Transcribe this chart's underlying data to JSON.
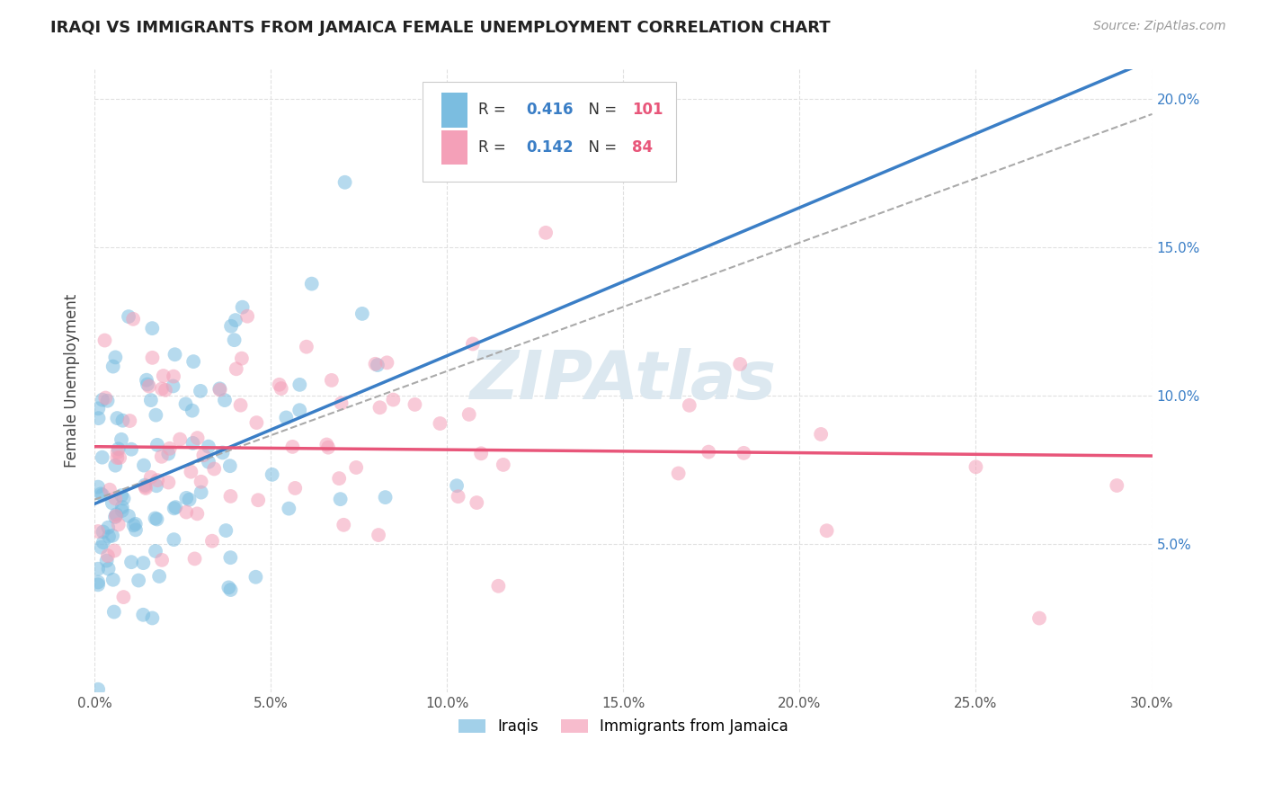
{
  "title": "IRAQI VS IMMIGRANTS FROM JAMAICA FEMALE UNEMPLOYMENT CORRELATION CHART",
  "source": "Source: ZipAtlas.com",
  "ylabel": "Female Unemployment",
  "xlim": [
    0.0,
    0.3
  ],
  "ylim": [
    0.0,
    0.21
  ],
  "xticks": [
    0.0,
    0.05,
    0.1,
    0.15,
    0.2,
    0.25,
    0.3
  ],
  "xtick_labels": [
    "0.0%",
    "5.0%",
    "10.0%",
    "15.0%",
    "20.0%",
    "25.0%",
    "30.0%"
  ],
  "yticks": [
    0.05,
    0.1,
    0.15,
    0.2
  ],
  "ytick_labels": [
    "5.0%",
    "10.0%",
    "15.0%",
    "20.0%"
  ],
  "legend_r1": "0.416",
  "legend_n1": "101",
  "legend_r2": "0.142",
  "legend_n2": "84",
  "color_blue": "#7bbde0",
  "color_pink": "#f4a0b8",
  "color_blue_line": "#3a7ec6",
  "color_pink_line": "#e8567a",
  "color_title": "#222222",
  "color_source": "#999999",
  "color_r_value": "#3a7ec6",
  "color_n_value": "#e8567a",
  "color_axis_ticks": "#3a7ec6",
  "watermark_color": "#dce8f0",
  "background_color": "#ffffff",
  "grid_color": "#e0e0e0",
  "seed": 99
}
